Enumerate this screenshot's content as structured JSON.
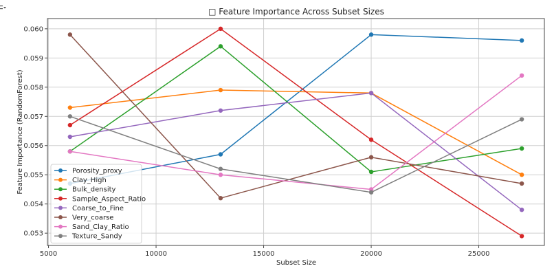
{
  "chart_data": {
    "type": "line",
    "title": "□ Feature Importance Across Subset Sizes",
    "xlabel": "Subset Size",
    "ylabel": "Feature Importance (RandomForest)",
    "x": [
      6000,
      13000,
      20000,
      27000
    ],
    "xlim": [
      4950,
      28050
    ],
    "ylim": [
      0.05258,
      0.06035
    ],
    "xticks": [
      5000,
      10000,
      15000,
      20000,
      25000
    ],
    "xtick_labels": [
      "5000",
      "10000",
      "15000",
      "20000",
      "25000"
    ],
    "yticks": [
      0.053,
      0.054,
      0.055,
      0.056,
      0.057,
      0.058,
      0.059,
      0.06
    ],
    "ytick_labels": [
      "0.053",
      "0.054",
      "0.055",
      "0.056",
      "0.057",
      "0.058",
      "0.059",
      "0.060"
    ],
    "grid": true,
    "legend_position": "lower left",
    "series": [
      {
        "name": "Porosity_proxy",
        "color": "#1f77b4",
        "values": [
          0.0547,
          0.0557,
          0.0598,
          0.0596
        ]
      },
      {
        "name": "Clay_High",
        "color": "#ff7f0e",
        "values": [
          0.0573,
          0.0579,
          0.0578,
          0.055
        ]
      },
      {
        "name": "Bulk_density",
        "color": "#2ca02c",
        "values": [
          0.0558,
          0.0594,
          0.0551,
          0.0559
        ]
      },
      {
        "name": "Sample_Aspect_Ratio",
        "color": "#d62728",
        "values": [
          0.0567,
          0.06,
          0.0562,
          0.0529
        ]
      },
      {
        "name": "Coarse_to_Fine",
        "color": "#9467bd",
        "values": [
          0.0563,
          0.0572,
          0.0578,
          0.0538
        ]
      },
      {
        "name": "Very_coarse",
        "color": "#8c564b",
        "values": [
          0.0598,
          0.0542,
          0.0556,
          0.0547
        ]
      },
      {
        "name": "Sand_Clay_Ratio",
        "color": "#e377c2",
        "values": [
          0.0558,
          0.055,
          0.0545,
          0.0584
        ]
      },
      {
        "name": "Texture_Sandy",
        "color": "#7f7f7f",
        "values": [
          0.057,
          0.0552,
          0.0544,
          0.0569
        ]
      }
    ]
  },
  "ui": {
    "corner_icon": "output-toggle-icon"
  }
}
